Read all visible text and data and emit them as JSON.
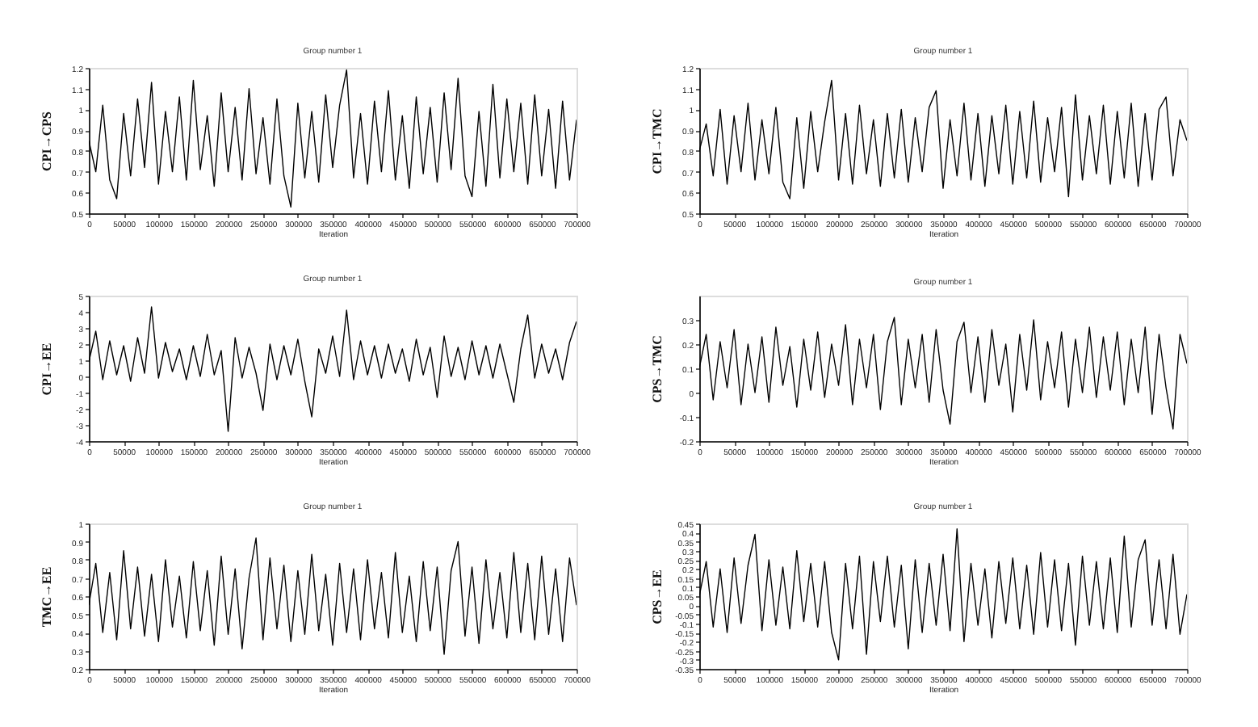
{
  "chart_data": [
    {
      "type": "line",
      "title": "Group number 1",
      "xlabel": "Iteration",
      "ylabel": "CPI→CPS",
      "x": [
        0,
        10000,
        20000,
        30000,
        40000,
        50000,
        60000,
        70000,
        80000,
        90000,
        100000,
        110000,
        120000,
        130000,
        140000,
        150000,
        160000,
        170000,
        180000,
        190000,
        200000,
        210000,
        220000,
        230000,
        240000,
        250000,
        260000,
        270000,
        280000,
        290000,
        300000,
        310000,
        320000,
        330000,
        340000,
        350000,
        360000,
        370000,
        380000,
        390000,
        400000,
        410000,
        420000,
        430000,
        440000,
        450000,
        460000,
        470000,
        480000,
        490000,
        500000,
        510000,
        520000,
        530000,
        540000,
        550000,
        560000,
        570000,
        580000,
        590000,
        600000,
        610000,
        620000,
        630000,
        640000,
        650000,
        660000,
        670000,
        680000,
        690000,
        700000
      ],
      "series": [
        {
          "color": "#000000",
          "values": [
            0.85,
            0.7,
            1.02,
            0.66,
            0.57,
            0.98,
            0.68,
            1.05,
            0.72,
            1.13,
            0.64,
            0.99,
            0.7,
            1.06,
            0.66,
            1.14,
            0.71,
            0.97,
            0.63,
            1.08,
            0.7,
            1.01,
            0.66,
            1.1,
            0.69,
            0.96,
            0.64,
            1.05,
            0.68,
            0.53,
            1.03,
            0.67,
            0.99,
            0.65,
            1.07,
            0.72,
            1.02,
            1.19,
            0.67,
            0.98,
            0.64,
            1.04,
            0.7,
            1.09,
            0.66,
            0.97,
            0.62,
            1.06,
            0.69,
            1.01,
            0.65,
            1.08,
            0.71,
            1.15,
            0.68,
            0.58,
            0.99,
            0.63,
            1.12,
            0.67,
            1.05,
            0.7,
            1.03,
            0.64,
            1.07,
            0.68,
            1.0,
            0.62,
            1.04,
            0.66,
            0.95
          ]
        }
      ],
      "xlim": [
        0,
        700000
      ],
      "xticks": [
        0,
        50000,
        100000,
        150000,
        200000,
        250000,
        300000,
        350000,
        400000,
        450000,
        500000,
        550000,
        600000,
        650000,
        700000
      ],
      "ylim": [
        0.5,
        1.2
      ],
      "yticks": [
        0.5,
        0.6,
        0.7,
        0.8,
        0.9,
        1,
        1.1,
        1.2
      ]
    },
    {
      "type": "line",
      "title": "Group number 1",
      "xlabel": "Iteration",
      "ylabel": "CPI→TMC",
      "x": [
        0,
        10000,
        20000,
        30000,
        40000,
        50000,
        60000,
        70000,
        80000,
        90000,
        100000,
        110000,
        120000,
        130000,
        140000,
        150000,
        160000,
        170000,
        180000,
        190000,
        200000,
        210000,
        220000,
        230000,
        240000,
        250000,
        260000,
        270000,
        280000,
        290000,
        300000,
        310000,
        320000,
        330000,
        340000,
        350000,
        360000,
        370000,
        380000,
        390000,
        400000,
        410000,
        420000,
        430000,
        440000,
        450000,
        460000,
        470000,
        480000,
        490000,
        500000,
        510000,
        520000,
        530000,
        540000,
        550000,
        560000,
        570000,
        580000,
        590000,
        600000,
        610000,
        620000,
        630000,
        640000,
        650000,
        660000,
        670000,
        680000,
        690000,
        700000
      ],
      "series": [
        {
          "color": "#000000",
          "values": [
            0.8,
            0.93,
            0.68,
            1.0,
            0.64,
            0.97,
            0.7,
            1.03,
            0.66,
            0.95,
            0.69,
            1.01,
            0.65,
            0.57,
            0.96,
            0.62,
            0.99,
            0.7,
            0.94,
            1.14,
            0.66,
            0.98,
            0.64,
            1.02,
            0.69,
            0.95,
            0.63,
            0.98,
            0.67,
            1.0,
            0.65,
            0.96,
            0.7,
            1.01,
            1.09,
            0.62,
            0.95,
            0.68,
            1.03,
            0.66,
            0.98,
            0.63,
            0.97,
            0.69,
            1.02,
            0.64,
            0.99,
            0.67,
            1.04,
            0.65,
            0.96,
            0.7,
            1.01,
            0.58,
            1.07,
            0.66,
            0.97,
            0.69,
            1.02,
            0.64,
            0.99,
            0.67,
            1.03,
            0.63,
            0.98,
            0.66,
            1.0,
            1.06,
            0.68,
            0.95,
            0.85
          ]
        }
      ],
      "xlim": [
        0,
        700000
      ],
      "xticks": [
        0,
        50000,
        100000,
        150000,
        200000,
        250000,
        300000,
        350000,
        400000,
        450000,
        500000,
        550000,
        600000,
        650000,
        700000
      ],
      "ylim": [
        0.5,
        1.2
      ],
      "yticks": [
        0.5,
        0.6,
        0.7,
        0.8,
        0.9,
        1,
        1.1,
        1.2
      ]
    },
    {
      "type": "line",
      "title": "Group number 1",
      "xlabel": "Iteration",
      "ylabel": "CPI→EE",
      "x": [
        0,
        10000,
        20000,
        30000,
        40000,
        50000,
        60000,
        70000,
        80000,
        90000,
        100000,
        110000,
        120000,
        130000,
        140000,
        150000,
        160000,
        170000,
        180000,
        190000,
        200000,
        210000,
        220000,
        230000,
        240000,
        250000,
        260000,
        270000,
        280000,
        290000,
        300000,
        310000,
        320000,
        330000,
        340000,
        350000,
        360000,
        370000,
        380000,
        390000,
        400000,
        410000,
        420000,
        430000,
        440000,
        450000,
        460000,
        470000,
        480000,
        490000,
        500000,
        510000,
        520000,
        530000,
        540000,
        550000,
        560000,
        570000,
        580000,
        590000,
        600000,
        610000,
        620000,
        630000,
        640000,
        650000,
        660000,
        670000,
        680000,
        690000,
        700000
      ],
      "series": [
        {
          "color": "#000000",
          "values": [
            0.9,
            2.8,
            -0.2,
            2.2,
            0.1,
            1.9,
            -0.3,
            2.4,
            0.2,
            4.3,
            -0.1,
            2.1,
            0.3,
            1.7,
            -0.2,
            1.9,
            0.0,
            2.6,
            0.1,
            1.6,
            -3.4,
            2.4,
            -0.1,
            1.8,
            0.2,
            -2.1,
            2.0,
            -0.2,
            1.9,
            0.1,
            2.3,
            -0.3,
            -2.5,
            1.7,
            0.2,
            2.5,
            0.0,
            4.1,
            -0.2,
            2.2,
            0.1,
            1.9,
            -0.1,
            2.0,
            0.2,
            1.7,
            -0.3,
            2.3,
            0.1,
            1.8,
            -1.3,
            2.5,
            0.0,
            1.8,
            -0.2,
            2.2,
            0.1,
            1.9,
            -0.1,
            2.0,
            0.2,
            -1.6,
            1.7,
            3.8,
            -0.1,
            2.0,
            0.2,
            1.7,
            -0.2,
            2.1,
            3.4
          ]
        }
      ],
      "xlim": [
        0,
        700000
      ],
      "xticks": [
        0,
        50000,
        100000,
        150000,
        200000,
        250000,
        300000,
        350000,
        400000,
        450000,
        500000,
        550000,
        600000,
        650000,
        700000
      ],
      "ylim": [
        -4,
        5
      ],
      "yticks": [
        -4,
        -3,
        -2,
        -1,
        0,
        1,
        2,
        3,
        4,
        5
      ]
    },
    {
      "type": "line",
      "title": "Group number 1",
      "xlabel": "Iteration",
      "ylabel": "CPS→TMC",
      "x": [
        0,
        10000,
        20000,
        30000,
        40000,
        50000,
        60000,
        70000,
        80000,
        90000,
        100000,
        110000,
        120000,
        130000,
        140000,
        150000,
        160000,
        170000,
        180000,
        190000,
        200000,
        210000,
        220000,
        230000,
        240000,
        250000,
        260000,
        270000,
        280000,
        290000,
        300000,
        310000,
        320000,
        330000,
        340000,
        350000,
        360000,
        370000,
        380000,
        390000,
        400000,
        410000,
        420000,
        430000,
        440000,
        450000,
        460000,
        470000,
        480000,
        490000,
        500000,
        510000,
        520000,
        530000,
        540000,
        550000,
        560000,
        570000,
        580000,
        590000,
        600000,
        610000,
        620000,
        630000,
        640000,
        650000,
        660000,
        670000,
        680000,
        690000,
        700000
      ],
      "series": [
        {
          "color": "#000000",
          "values": [
            0.1,
            0.24,
            -0.03,
            0.21,
            0.02,
            0.26,
            -0.05,
            0.2,
            0.0,
            0.23,
            -0.04,
            0.27,
            0.03,
            0.19,
            -0.06,
            0.22,
            0.01,
            0.25,
            -0.02,
            0.2,
            0.03,
            0.28,
            -0.05,
            0.22,
            0.02,
            0.24,
            -0.07,
            0.21,
            0.31,
            -0.05,
            0.22,
            0.02,
            0.24,
            -0.04,
            0.26,
            0.01,
            -0.13,
            0.21,
            0.29,
            0.0,
            0.23,
            -0.04,
            0.26,
            0.03,
            0.2,
            -0.08,
            0.24,
            0.01,
            0.3,
            -0.03,
            0.21,
            0.02,
            0.25,
            -0.06,
            0.22,
            0.0,
            0.27,
            -0.02,
            0.23,
            0.01,
            0.25,
            -0.05,
            0.22,
            0.0,
            0.27,
            -0.09,
            0.24,
            0.02,
            -0.15,
            0.24,
            0.12
          ]
        }
      ],
      "xlim": [
        0,
        700000
      ],
      "xticks": [
        0,
        50000,
        100000,
        150000,
        200000,
        250000,
        300000,
        350000,
        400000,
        450000,
        500000,
        550000,
        600000,
        650000,
        700000
      ],
      "ylim": [
        -0.2,
        0.4
      ],
      "yticks": [
        -0.2,
        -0.1,
        0,
        0.1,
        0.2,
        0.3
      ]
    },
    {
      "type": "line",
      "title": "Group number 1",
      "xlabel": "Iteration",
      "ylabel": "TMC→EE",
      "x": [
        0,
        10000,
        20000,
        30000,
        40000,
        50000,
        60000,
        70000,
        80000,
        90000,
        100000,
        110000,
        120000,
        130000,
        140000,
        150000,
        160000,
        170000,
        180000,
        190000,
        200000,
        210000,
        220000,
        230000,
        240000,
        250000,
        260000,
        270000,
        280000,
        290000,
        300000,
        310000,
        320000,
        330000,
        340000,
        350000,
        360000,
        370000,
        380000,
        390000,
        400000,
        410000,
        420000,
        430000,
        440000,
        450000,
        460000,
        470000,
        480000,
        490000,
        500000,
        510000,
        520000,
        530000,
        540000,
        550000,
        560000,
        570000,
        580000,
        590000,
        600000,
        610000,
        620000,
        630000,
        640000,
        650000,
        660000,
        670000,
        680000,
        690000,
        700000
      ],
      "series": [
        {
          "color": "#000000",
          "values": [
            0.55,
            0.78,
            0.4,
            0.73,
            0.36,
            0.85,
            0.42,
            0.76,
            0.38,
            0.72,
            0.35,
            0.8,
            0.43,
            0.71,
            0.37,
            0.79,
            0.41,
            0.74,
            0.33,
            0.82,
            0.39,
            0.75,
            0.31,
            0.7,
            0.92,
            0.36,
            0.81,
            0.42,
            0.77,
            0.35,
            0.74,
            0.39,
            0.83,
            0.41,
            0.72,
            0.33,
            0.78,
            0.4,
            0.75,
            0.36,
            0.8,
            0.42,
            0.73,
            0.37,
            0.84,
            0.4,
            0.71,
            0.35,
            0.79,
            0.41,
            0.76,
            0.28,
            0.74,
            0.9,
            0.38,
            0.76,
            0.34,
            0.8,
            0.42,
            0.73,
            0.37,
            0.84,
            0.4,
            0.78,
            0.36,
            0.82,
            0.39,
            0.75,
            0.35,
            0.81,
            0.55
          ]
        }
      ],
      "xlim": [
        0,
        700000
      ],
      "xticks": [
        0,
        50000,
        100000,
        150000,
        200000,
        250000,
        300000,
        350000,
        400000,
        450000,
        500000,
        550000,
        600000,
        650000,
        700000
      ],
      "ylim": [
        0.2,
        1
      ],
      "yticks": [
        0.2,
        0.3,
        0.4,
        0.5,
        0.6,
        0.7,
        0.8,
        0.9,
        1
      ]
    },
    {
      "type": "line",
      "title": "Group number 1",
      "xlabel": "Iteration",
      "ylabel": "CPS→EE",
      "x": [
        0,
        10000,
        20000,
        30000,
        40000,
        50000,
        60000,
        70000,
        80000,
        90000,
        100000,
        110000,
        120000,
        130000,
        140000,
        150000,
        160000,
        170000,
        180000,
        190000,
        200000,
        210000,
        220000,
        230000,
        240000,
        250000,
        260000,
        270000,
        280000,
        290000,
        300000,
        310000,
        320000,
        330000,
        340000,
        350000,
        360000,
        370000,
        380000,
        390000,
        400000,
        410000,
        420000,
        430000,
        440000,
        450000,
        460000,
        470000,
        480000,
        490000,
        500000,
        510000,
        520000,
        530000,
        540000,
        550000,
        560000,
        570000,
        580000,
        590000,
        600000,
        610000,
        620000,
        630000,
        640000,
        650000,
        660000,
        670000,
        680000,
        690000,
        700000
      ],
      "series": [
        {
          "color": "#000000",
          "values": [
            0.05,
            0.24,
            -0.12,
            0.2,
            -0.15,
            0.26,
            -0.1,
            0.22,
            0.39,
            -0.14,
            0.25,
            -0.11,
            0.21,
            -0.13,
            0.3,
            -0.09,
            0.23,
            -0.12,
            0.24,
            -0.15,
            -0.3,
            0.23,
            -0.13,
            0.27,
            -0.27,
            0.24,
            -0.09,
            0.27,
            -0.12,
            0.22,
            -0.24,
            0.25,
            -0.15,
            0.23,
            -0.11,
            0.28,
            -0.14,
            0.42,
            -0.2,
            0.23,
            -0.11,
            0.2,
            -0.18,
            0.24,
            -0.1,
            0.26,
            -0.13,
            0.22,
            -0.16,
            0.29,
            -0.12,
            0.25,
            -0.14,
            0.23,
            -0.22,
            0.27,
            -0.11,
            0.24,
            -0.13,
            0.26,
            -0.15,
            0.38,
            -0.12,
            0.25,
            0.36,
            -0.11,
            0.25,
            -0.13,
            0.28,
            -0.16,
            0.06
          ]
        }
      ],
      "xlim": [
        0,
        700000
      ],
      "xticks": [
        0,
        50000,
        100000,
        150000,
        200000,
        250000,
        300000,
        350000,
        400000,
        450000,
        500000,
        550000,
        600000,
        650000,
        700000
      ],
      "ylim": [
        -0.35,
        0.45
      ],
      "yticks": [
        -0.35,
        -0.3,
        -0.25,
        -0.2,
        -0.15,
        -0.1,
        -0.05,
        0,
        0.05,
        0.1,
        0.15,
        0.2,
        0.25,
        0.3,
        0.35,
        0.4,
        0.45
      ]
    }
  ]
}
